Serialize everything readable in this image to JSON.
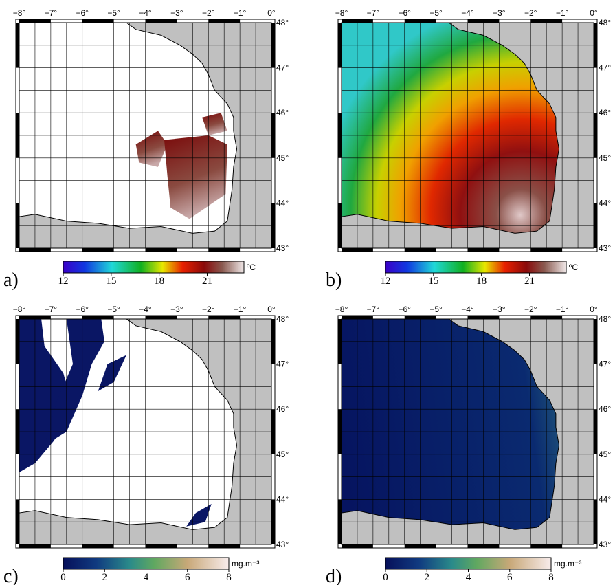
{
  "map_axes": {
    "xlim": [
      -8,
      0
    ],
    "xticks": [
      {
        "value": -8,
        "label": "−8°"
      },
      {
        "value": -7,
        "label": "−7°"
      },
      {
        "value": -6,
        "label": "−6°"
      },
      {
        "value": -5,
        "label": "−5°"
      },
      {
        "value": -4,
        "label": "−4°"
      },
      {
        "value": -3,
        "label": "−3°"
      },
      {
        "value": -2,
        "label": "−2°"
      },
      {
        "value": -1,
        "label": "−1°"
      },
      {
        "value": 0,
        "label": "0°"
      }
    ],
    "ylim": [
      43,
      48
    ],
    "yticks": [
      {
        "value": 43,
        "label": "43°"
      },
      {
        "value": 44,
        "label": "44°"
      },
      {
        "value": 45,
        "label": "45°"
      },
      {
        "value": 46,
        "label": "46°"
      },
      {
        "value": 47,
        "label": "47°"
      },
      {
        "value": 48,
        "label": "48°"
      }
    ]
  },
  "panels": [
    {
      "label": "a)",
      "colorbar": {
        "lim": [
          12,
          23.3
        ],
        "ticks": [
          12,
          15,
          18,
          21
        ],
        "unit": "ºC"
      }
    },
    {
      "label": "b)",
      "colorbar": {
        "lim": [
          12,
          23.3
        ],
        "ticks": [
          12,
          15,
          18,
          21
        ],
        "unit": "ºC"
      }
    },
    {
      "label": "c)",
      "colorbar": {
        "lim": [
          0,
          8
        ],
        "ticks": [
          0,
          2,
          4,
          6,
          8
        ],
        "unit": "mg.m⁻³"
      }
    },
    {
      "label": "d)",
      "colorbar": {
        "lim": [
          0,
          8
        ],
        "ticks": [
          0,
          2,
          4,
          6,
          8
        ],
        "unit": "mg.m⁻³"
      }
    }
  ]
}
